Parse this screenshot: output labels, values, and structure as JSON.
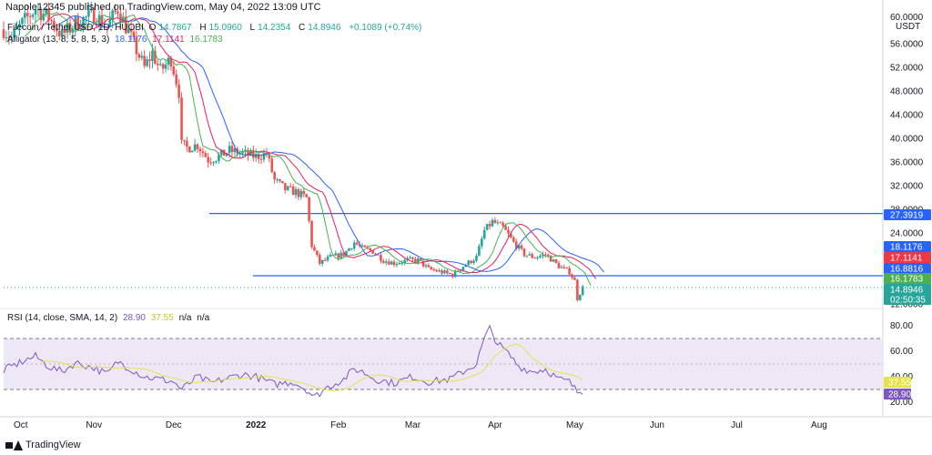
{
  "header": {
    "published": "Napole12345 published on TradingView.com, May 04, 2022 13:09 UTC"
  },
  "legend": {
    "symbol": "Filecoin / Tether USD, 1D, HUOBI",
    "ohlc": {
      "o_label": "O",
      "o": "14.7867",
      "h_label": "H",
      "h": "15.0960",
      "l_label": "L",
      "l": "14.2354",
      "c_label": "C",
      "c": "14.8946",
      "chg": "+0.1089 (+0.74%)"
    },
    "alligator": "Alligator (13, 8, 5, 8, 5, 3)",
    "alligator_values": [
      "18.1176",
      "17.1141",
      "16.1783"
    ],
    "rsi": "RSI (14, close, SMA, 14, 2)",
    "rsi_values": [
      "28.90",
      "37.55",
      "n/a",
      "n/a"
    ]
  },
  "colors": {
    "up": "#26a69a",
    "down": "#ef5350",
    "jaw": "#2962ff",
    "teeth": "#e91e63",
    "lips": "#4caf50",
    "hline": "#2962ff",
    "rsi": "#7e57c2",
    "rsi_ma": "#e6e34a",
    "rsi_band": "#ede7f6"
  },
  "price_axis": {
    "currency": "USDT",
    "ticks": [
      "56.0000",
      "52.0000",
      "48.0000",
      "44.0000",
      "40.0000",
      "36.0000",
      "32.0000",
      "28.0000",
      "24.0000",
      "20.0000",
      "16.0000",
      "12.0000"
    ],
    "top_label": "60.0000"
  },
  "rsi_axis": {
    "ticks": [
      "80.00",
      "60.00",
      "40.00",
      "20.00"
    ]
  },
  "price_tags": [
    {
      "value": "27.3919",
      "kind": "line"
    },
    {
      "value": "18.1176",
      "kind": "jaw"
    },
    {
      "value": "17.1141",
      "kind": "teeth"
    },
    {
      "value": "16.8816",
      "kind": "line"
    },
    {
      "value": "16.1783",
      "kind": "lips"
    },
    {
      "value": "14.8946",
      "kind": "last"
    },
    {
      "value": "02:50:35",
      "kind": "countdown"
    }
  ],
  "rsi_tags": [
    {
      "value": "37.55",
      "kind": "ma"
    },
    {
      "value": "28.90",
      "kind": "rsi"
    }
  ],
  "time_axis": [
    "Oct",
    "Nov",
    "Dec",
    "2022",
    "Feb",
    "Mar",
    "Apr",
    "May",
    "Jun",
    "Jul",
    "Aug"
  ],
  "footer": {
    "brand": "TradingView"
  },
  "chart_data": {
    "type": "candlestick",
    "title": "Filecoin / Tether USD, 1D, HUOBI",
    "price_range": [
      11.5,
      61
    ],
    "horizontal_lines": [
      27.3919,
      16.8816
    ],
    "last_price": 14.8946,
    "anchors": [
      [
        "2021-09-28",
        58.5
      ],
      [
        "2021-10-01",
        57.0
      ],
      [
        "2021-10-05",
        59.5
      ],
      [
        "2021-10-10",
        62.0
      ],
      [
        "2021-10-15",
        60.5
      ],
      [
        "2021-10-20",
        57.5
      ],
      [
        "2021-10-25",
        59.5
      ],
      [
        "2021-11-01",
        61.0
      ],
      [
        "2021-11-06",
        59.0
      ],
      [
        "2021-11-10",
        62.0
      ],
      [
        "2021-11-15",
        57.0
      ],
      [
        "2021-11-20",
        52.0
      ],
      [
        "2021-11-23",
        54.5
      ],
      [
        "2021-11-26",
        51.5
      ],
      [
        "2021-11-30",
        53.5
      ],
      [
        "2021-12-03",
        48.0
      ],
      [
        "2021-12-04",
        39.0
      ],
      [
        "2021-12-06",
        38.5
      ],
      [
        "2021-12-10",
        39.0
      ],
      [
        "2021-12-14",
        36.5
      ],
      [
        "2021-12-18",
        37.0
      ],
      [
        "2021-12-22",
        38.0
      ],
      [
        "2021-12-27",
        37.5
      ],
      [
        "2022-01-01",
        37.0
      ],
      [
        "2022-01-05",
        37.5
      ],
      [
        "2022-01-08",
        33.0
      ],
      [
        "2022-01-12",
        31.5
      ],
      [
        "2022-01-16",
        31.0
      ],
      [
        "2022-01-20",
        30.0
      ],
      [
        "2022-01-22",
        22.0
      ],
      [
        "2022-01-25",
        19.0
      ],
      [
        "2022-01-29",
        20.0
      ],
      [
        "2022-02-03",
        20.5
      ],
      [
        "2022-02-07",
        22.5
      ],
      [
        "2022-02-10",
        21.5
      ],
      [
        "2022-02-14",
        21.0
      ],
      [
        "2022-02-18",
        19.5
      ],
      [
        "2022-02-22",
        19.0
      ],
      [
        "2022-02-27",
        19.5
      ],
      [
        "2022-03-03",
        19.5
      ],
      [
        "2022-03-07",
        18.0
      ],
      [
        "2022-03-12",
        17.5
      ],
      [
        "2022-03-16",
        17.0
      ],
      [
        "2022-03-20",
        18.5
      ],
      [
        "2022-03-25",
        20.0
      ],
      [
        "2022-03-28",
        24.5
      ],
      [
        "2022-03-31",
        26.0
      ],
      [
        "2022-04-04",
        25.0
      ],
      [
        "2022-04-08",
        22.5
      ],
      [
        "2022-04-12",
        20.5
      ],
      [
        "2022-04-16",
        20.0
      ],
      [
        "2022-04-20",
        20.5
      ],
      [
        "2022-04-25",
        18.5
      ],
      [
        "2022-04-29",
        17.5
      ],
      [
        "2022-05-01",
        16.0
      ],
      [
        "2022-05-02",
        13.0
      ],
      [
        "2022-05-04",
        14.8946
      ]
    ],
    "rsi": {
      "range": [
        10,
        90
      ],
      "upper_band": 70,
      "lower_band": 30,
      "last": 28.9,
      "ma_last": 37.55,
      "points": [
        [
          "2021-09-28",
          45
        ],
        [
          "2021-10-05",
          52
        ],
        [
          "2021-10-10",
          56
        ],
        [
          "2021-10-15",
          48
        ],
        [
          "2021-10-20",
          44
        ],
        [
          "2021-10-25",
          51
        ],
        [
          "2021-11-01",
          47
        ],
        [
          "2021-11-06",
          42
        ],
        [
          "2021-11-10",
          52
        ],
        [
          "2021-11-15",
          46
        ],
        [
          "2021-11-20",
          40
        ],
        [
          "2021-11-26",
          38
        ],
        [
          "2021-12-01",
          36
        ],
        [
          "2021-12-04",
          30
        ],
        [
          "2021-12-10",
          40
        ],
        [
          "2021-12-15",
          35
        ],
        [
          "2021-12-20",
          38
        ],
        [
          "2021-12-27",
          42
        ],
        [
          "2022-01-01",
          40
        ],
        [
          "2022-01-08",
          34
        ],
        [
          "2022-01-15",
          36
        ],
        [
          "2022-01-20",
          30
        ],
        [
          "2022-01-23",
          24
        ],
        [
          "2022-01-28",
          32
        ],
        [
          "2022-02-03",
          38
        ],
        [
          "2022-02-07",
          46
        ],
        [
          "2022-02-10",
          44
        ],
        [
          "2022-02-15",
          38
        ],
        [
          "2022-02-22",
          35
        ],
        [
          "2022-03-01",
          40
        ],
        [
          "2022-03-07",
          36
        ],
        [
          "2022-03-15",
          38
        ],
        [
          "2022-03-20",
          44
        ],
        [
          "2022-03-25",
          50
        ],
        [
          "2022-03-28",
          70
        ],
        [
          "2022-03-30",
          78
        ],
        [
          "2022-04-02",
          66
        ],
        [
          "2022-04-06",
          58
        ],
        [
          "2022-04-10",
          48
        ],
        [
          "2022-04-15",
          44
        ],
        [
          "2022-04-20",
          46
        ],
        [
          "2022-04-25",
          38
        ],
        [
          "2022-04-29",
          36
        ],
        [
          "2022-05-02",
          28
        ],
        [
          "2022-05-04",
          28.9
        ]
      ]
    }
  }
}
